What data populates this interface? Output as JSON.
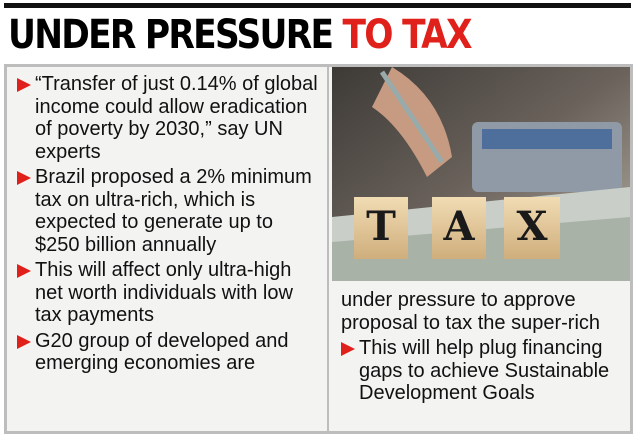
{
  "header": {
    "title_black": "UNDER PRESSURE",
    "title_red": "TO TAX"
  },
  "left_column": {
    "bullets": [
      "“Transfer of just 0.14% of global income could allow eradication of poverty by 2030,” say UN experts",
      "Brazil proposed a 2% minimum tax on ultra-rich, which is expected to generate up to $250 billion annually",
      "This will affect only ultra-high net worth individuals with low tax payments",
      "G20 group of developed and emerging economies are"
    ]
  },
  "right_column": {
    "continuation": "under pressure to approve proposal to tax the super-rich",
    "bullets": [
      "This will help plug financing gaps to achieve Sustainable Development Goals"
    ]
  },
  "image": {
    "blocks": [
      "T",
      "A",
      "X"
    ]
  }
}
